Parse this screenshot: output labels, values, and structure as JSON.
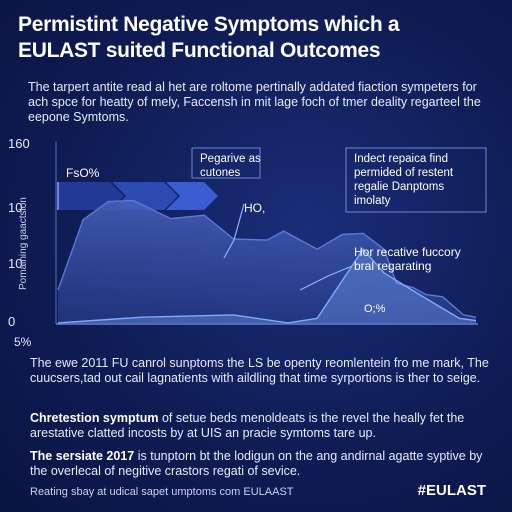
{
  "title_line1": "Permistint Negative Symptoms which a",
  "title_line2": "EULAST suited Functional Outcomes",
  "intro_text": "The tarpert antite read al het are roltome pertinally addated fiaction sympeters for ach spce for heatty of mely, Faccensh in mit lage foch of tmer deality regarteel the eepone Symtoms.",
  "chart_data": {
    "type": "area",
    "ylabel": "Pomaining gaactslon",
    "y_ticks": [
      "0",
      "10",
      "10",
      "160"
    ],
    "x_tick_first": "5%",
    "series": [
      {
        "color": "#3d5db5",
        "values": [
          [
            0,
            3
          ],
          [
            6,
            9.2
          ],
          [
            12,
            10.8
          ],
          [
            18,
            10.9
          ],
          [
            27,
            9.3
          ],
          [
            35,
            9.6
          ],
          [
            42,
            7.5
          ],
          [
            50,
            7.4
          ],
          [
            54,
            8.2
          ],
          [
            62,
            6.6
          ],
          [
            68,
            7.9
          ],
          [
            73,
            8
          ],
          [
            78,
            6.6
          ],
          [
            81,
            3.6
          ],
          [
            85,
            3.2
          ],
          [
            88,
            2.6
          ],
          [
            92,
            2.4
          ],
          [
            97,
            0.8
          ],
          [
            100,
            0.6
          ]
        ]
      },
      {
        "color": "#7fa9ff",
        "values": [
          [
            0,
            0.1
          ],
          [
            20,
            0.6
          ],
          [
            42,
            0.8
          ],
          [
            55,
            0.1
          ],
          [
            62,
            0.5
          ],
          [
            73,
            6.6
          ],
          [
            78,
            4.5
          ],
          [
            86,
            2.7
          ],
          [
            96,
            0.5
          ],
          [
            100,
            0.3
          ]
        ]
      }
    ],
    "annotations": {
      "top_left": "FsO%",
      "mid_label": "Pegarive as\ncutones",
      "hq": "HO,",
      "box_line1": "Indect repaica find",
      "box_line2": "permided of restent",
      "box_line3": "regalie Danptoms",
      "box_line4": "imolaty",
      "mid_right_line1": "Hor recative fuccory",
      "mid_right_line2": "bral regarating",
      "pct": "O;%"
    }
  },
  "para1": "The ewe 2011 FU canrol sunptoms the LS be openty reomlentein fro me mark, The cuucsers,tad out cail lagnatients with aildling that time syrportions is ther to seige.",
  "para2_bold": "Chretestion symptum",
  "para2_rest": " of setue beds menoldeats is the revel the heally fet the arestative clatted incosts by at UIS an pracie symtoms tare up.",
  "para3_bold": "The sersiate 2017",
  "para3_rest": " is tunptorn bt the lodigun on the ang andirnal agatte syptive by the overlecal of negitive crastors regati of sevice.",
  "footer": "Reating sbay at udical sapet umptoms com EULAAST",
  "hashtag": "#EULAST"
}
